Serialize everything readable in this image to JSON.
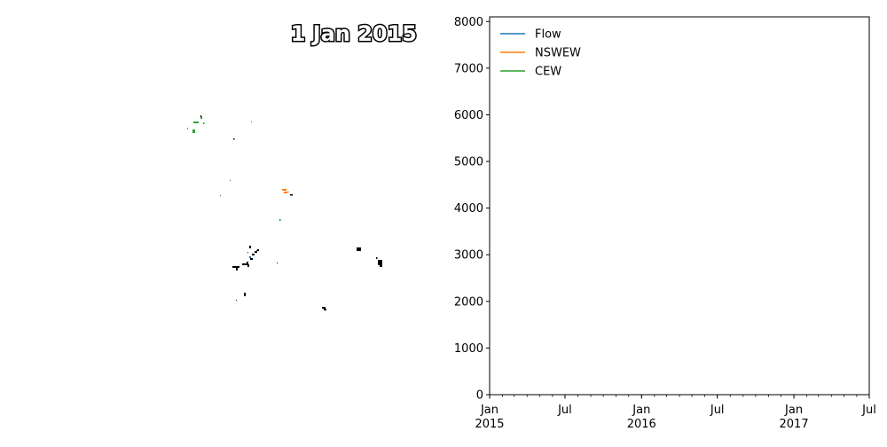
{
  "map": {
    "date_label": "1 Jan 2015",
    "colors": {
      "wetland": "#000000",
      "nswew": "#ff7f0e",
      "cew": "#2ca02c",
      "flow": "#1f77b4"
    }
  },
  "chart_data": {
    "type": "line",
    "title": "",
    "xlabel": "",
    "ylabel": "",
    "ylim": [
      0,
      8100
    ],
    "xlim": [
      "2015-01-01",
      "2017-07-01"
    ],
    "y_ticks": [
      0,
      1000,
      2000,
      3000,
      4000,
      5000,
      6000,
      7000,
      8000
    ],
    "x_ticks": [
      {
        "date": "2015-01-01",
        "label": "Jan",
        "year": "2015"
      },
      {
        "date": "2015-07-01",
        "label": "Jul",
        "year": ""
      },
      {
        "date": "2016-01-01",
        "label": "Jan",
        "year": "2016"
      },
      {
        "date": "2016-07-01",
        "label": "Jul",
        "year": ""
      },
      {
        "date": "2017-01-01",
        "label": "Jan",
        "year": "2017"
      },
      {
        "date": "2017-07-01",
        "label": "Jul",
        "year": ""
      }
    ],
    "grid": false,
    "legend_position": "top-left",
    "series": [
      {
        "name": "Flow",
        "color": "#1f77b4",
        "x": [],
        "y": []
      },
      {
        "name": "NSWEW",
        "color": "#ff7f0e",
        "x": [],
        "y": []
      },
      {
        "name": "CEW",
        "color": "#2ca02c",
        "x": [],
        "y": []
      }
    ]
  }
}
